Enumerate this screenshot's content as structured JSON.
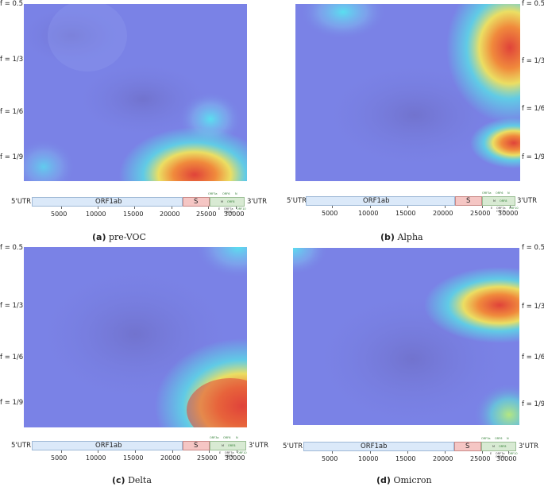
{
  "panels": [
    {
      "id": "a",
      "caption_letter": "(a)",
      "caption_name": "pre-VOC",
      "f_labels": [
        "f = 0.5",
        "f = 1/3",
        "f = 1/6",
        "f = 1/9"
      ],
      "genome": {
        "left_label": "5'UTR",
        "orf_label": "ORF1ab",
        "s_label": "S",
        "right_label": "3'UTR",
        "small_labels": [
          "ORF3a",
          "ORF6",
          "N",
          "M",
          "ORF8",
          "E",
          "ORF7a",
          "ORF7b",
          "ORF10"
        ],
        "ticks": [
          "5000",
          "10000",
          "15000",
          "20000",
          "25000",
          "30000"
        ]
      }
    },
    {
      "id": "b",
      "caption_letter": "(b)",
      "caption_name": "Alpha",
      "f_labels": [
        "f = 0.5",
        "f = 1/3",
        "f = 1/6",
        "f = 1/9"
      ],
      "genome": {
        "left_label": "5'UTR",
        "orf_label": "ORF1ab",
        "s_label": "S",
        "right_label": "3'UTR",
        "small_labels": [
          "ORF3a",
          "ORF6",
          "N",
          "M",
          "ORF8",
          "E",
          "ORF7a",
          "ORF7b",
          "ORF10"
        ],
        "ticks": [
          "5000",
          "10000",
          "15000",
          "20000",
          "25000",
          "30000"
        ]
      }
    },
    {
      "id": "c",
      "caption_letter": "(c)",
      "caption_name": "Delta",
      "f_labels": [
        "f = 0.5",
        "f = 1/3",
        "f = 1/6",
        "f = 1/9"
      ],
      "genome": {
        "left_label": "5'UTR",
        "orf_label": "ORF1ab",
        "s_label": "S",
        "right_label": "3'UTR",
        "small_labels": [
          "ORF3a",
          "ORF6",
          "N",
          "M",
          "ORF8",
          "E",
          "ORF7a",
          "ORF7b",
          "ORF10"
        ],
        "ticks": [
          "5000",
          "10000",
          "15000",
          "20000",
          "25000",
          "30000"
        ]
      }
    },
    {
      "id": "d",
      "caption_letter": "(d)",
      "caption_name": "Omicron",
      "f_labels": [
        "f = 0.5",
        "f = 1/3",
        "f = 1/6",
        "f = 1/9"
      ],
      "genome": {
        "left_label": "5'UTR",
        "orf_label": "ORF1ab",
        "s_label": "S",
        "right_label": "3'UTR",
        "small_labels": [
          "ORF3a",
          "ORF6",
          "N",
          "M",
          "ORF8",
          "E",
          "ORF7a",
          "ORF7b",
          "ORF10"
        ],
        "ticks": [
          "5000",
          "10000",
          "15000",
          "20000",
          "25000",
          "30000"
        ]
      }
    }
  ],
  "colors": {
    "heatmap_background": "#7a82e6",
    "hotspot_core": "#e64a3a",
    "hotspot_mid": "#f2e35a",
    "hotspot_edge": "#58e6e8"
  }
}
